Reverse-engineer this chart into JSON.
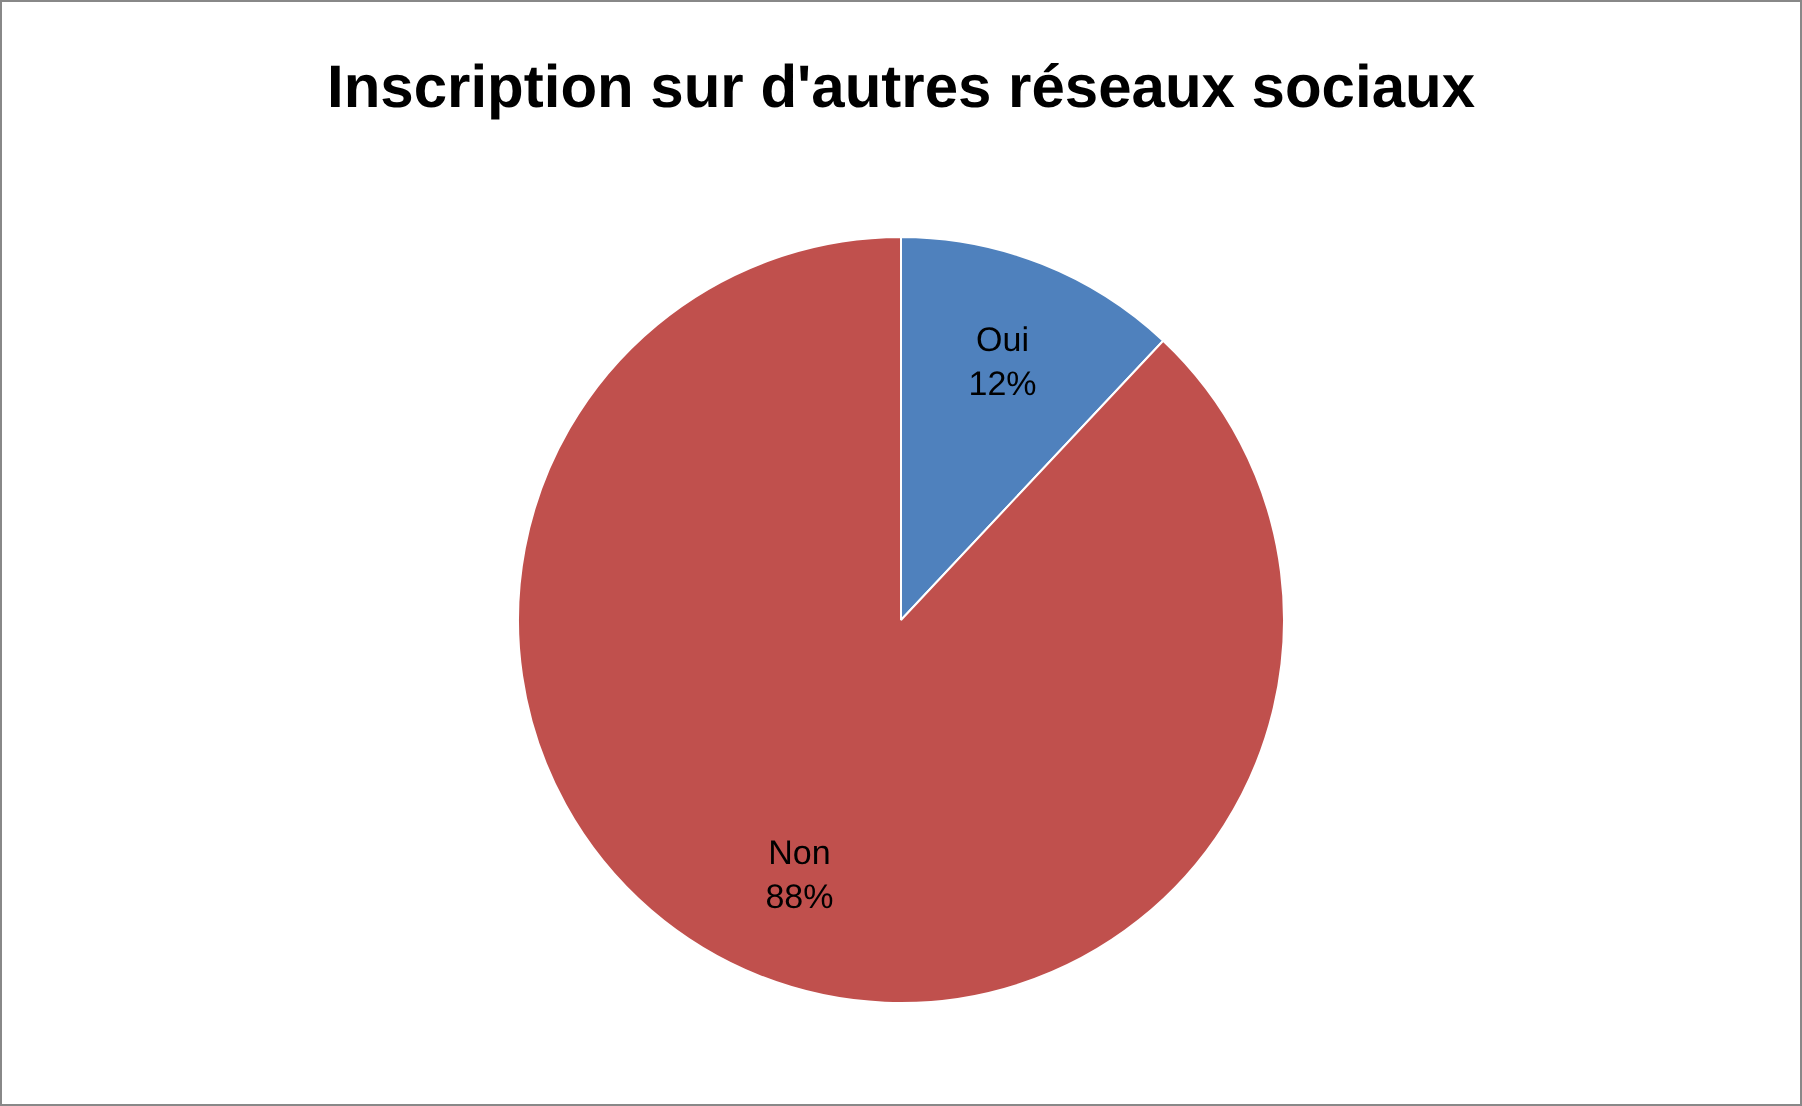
{
  "chart_data": {
    "type": "pie",
    "title": "Inscription sur d'autres réseaux sociaux",
    "categories": [
      "Oui",
      "Non"
    ],
    "values": [
      12,
      88
    ],
    "colors": [
      "#4f81bd",
      "#c0504d"
    ],
    "value_labels": [
      "12%",
      "88%"
    ],
    "legend": false
  }
}
